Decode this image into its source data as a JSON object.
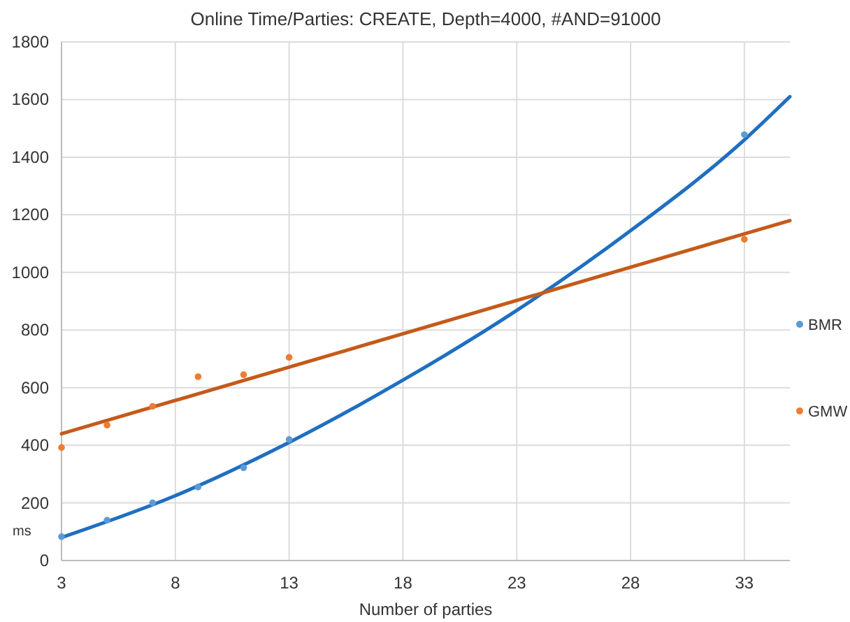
{
  "chart_data": {
    "type": "scatter",
    "title": "Online Time/Parties: CREATE, Depth=4000, #AND=91000",
    "xlabel": "Number of parties",
    "ylabel": "ms",
    "xlim": [
      3,
      35
    ],
    "xticks": [
      3,
      8,
      13,
      18,
      23,
      28,
      33
    ],
    "ylim": [
      0,
      1800
    ],
    "yticks": [
      0,
      200,
      400,
      600,
      800,
      1000,
      1200,
      1400,
      1600,
      1800
    ],
    "grid": true,
    "legend": "right",
    "marker": "circle",
    "series": [
      {
        "name": "BMR",
        "color": "#5b9bd5",
        "x": [
          3,
          5,
          7,
          9,
          11,
          13,
          33
        ],
        "values": [
          83,
          140,
          200,
          255,
          322,
          420,
          1478
        ]
      },
      {
        "name": "GMW",
        "color": "#ed7d31",
        "x": [
          3,
          5,
          7,
          9,
          11,
          13,
          33
        ],
        "values": [
          392,
          470,
          535,
          638,
          645,
          705,
          1115
        ]
      },
      {
        "type": "line",
        "color": "#1f6fc1",
        "marker": "none",
        "x": [
          3,
          8,
          13,
          18,
          23,
          28,
          33,
          35
        ],
        "values": [
          80,
          225,
          410,
          626,
          868,
          1145,
          1460,
          1610
        ]
      },
      {
        "type": "line",
        "color": "#c55a1a",
        "marker": "none",
        "x": [
          3,
          35
        ],
        "values": [
          440,
          1180
        ]
      }
    ]
  }
}
